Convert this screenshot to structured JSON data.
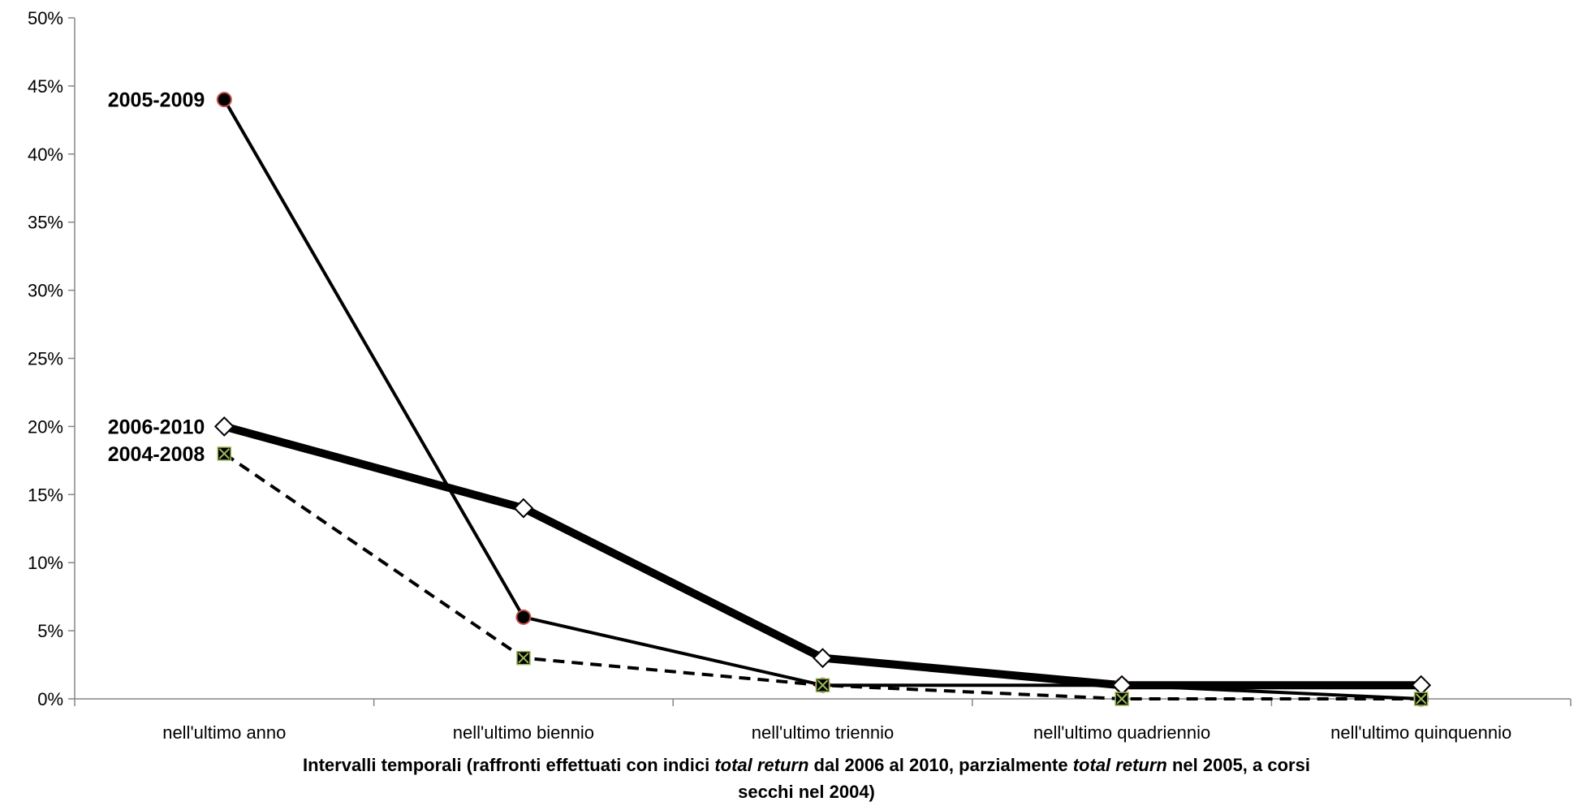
{
  "chart_data": {
    "type": "line",
    "categories": [
      "nell'ultimo anno",
      "nell'ultimo biennio",
      "nell'ultimo triennio",
      "nell'ultimo quadriennio",
      "nell'ultimo quinquennio"
    ],
    "ylim": [
      0,
      50
    ],
    "yticks": [
      "0%",
      "5%",
      "10%",
      "15%",
      "20%",
      "25%",
      "30%",
      "35%",
      "40%",
      "45%",
      "50%"
    ],
    "grid": false,
    "xlabel_parts": [
      {
        "text": "Intervalli temporali (raffronti effettuati con indici ",
        "italic": false
      },
      {
        "text": "total return",
        "italic": true
      },
      {
        "text": " dal 2006 al 2010, parzialmente ",
        "italic": false
      },
      {
        "text": "total return",
        "italic": true
      },
      {
        "text": " nel 2005, a corsi",
        "italic": false
      }
    ],
    "xlabel_line2": "secchi nel 2004)",
    "series": [
      {
        "name": "2005-2009",
        "values": [
          44,
          6,
          1,
          1,
          0
        ],
        "marker": "circle",
        "line": "solid-thin",
        "marker_fill": "#000000",
        "marker_stroke": "#c0504d"
      },
      {
        "name": "2006-2010",
        "values": [
          20,
          14,
          3,
          1,
          1
        ],
        "marker": "diamond",
        "line": "solid-thick",
        "marker_fill": "#ffffff",
        "marker_stroke": "#000000"
      },
      {
        "name": "2004-2008",
        "values": [
          18,
          3,
          1,
          0,
          0
        ],
        "marker": "square-x",
        "line": "dashed",
        "marker_fill": "#000000",
        "marker_stroke": "#9bbb59"
      }
    ]
  }
}
